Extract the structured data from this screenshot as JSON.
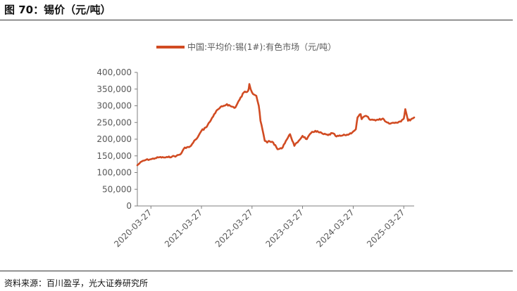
{
  "figure": {
    "title": "图 70：锡价（元/吨）",
    "source": "资料来源：百川盈孚，光大证券研究所"
  },
  "colors": {
    "series": "#D14B22",
    "axis": "#7F7F7F",
    "text": "#595959"
  },
  "chart_data": {
    "type": "line",
    "title": "",
    "xlabel": "",
    "ylabel": "",
    "legend": {
      "position": "top",
      "entries": [
        "中国:平均价:锡(1#):有色市场（元/吨）"
      ]
    },
    "grid": false,
    "ylim": [
      0,
      400000
    ],
    "yticks": [
      0,
      50000,
      100000,
      150000,
      200000,
      250000,
      300000,
      350000,
      400000
    ],
    "ytick_labels": [
      "0",
      "50,000",
      "100,000",
      "150,000",
      "200,000",
      "250,000",
      "300,000",
      "350,000",
      "400,000"
    ],
    "xlim": [
      "2019-12-20",
      "2025-06-10"
    ],
    "xticks": [
      "2020-03-27",
      "2021-03-27",
      "2022-03-27",
      "2023-03-27",
      "2024-03-27",
      "2025-03-27"
    ],
    "series": [
      {
        "name": "中国:平均价:锡(1#):有色市场（元/吨）",
        "x": [
          "2019-12-20",
          "2020-01-20",
          "2020-02-20",
          "2020-03-27",
          "2020-04-27",
          "2020-05-27",
          "2020-06-27",
          "2020-07-27",
          "2020-08-27",
          "2020-09-27",
          "2020-10-27",
          "2020-11-27",
          "2020-12-27",
          "2021-01-10",
          "2021-01-27",
          "2021-02-10",
          "2021-02-27",
          "2021-03-27",
          "2021-04-27",
          "2021-05-27",
          "2021-06-27",
          "2021-07-27",
          "2021-08-27",
          "2021-09-27",
          "2021-10-27",
          "2021-11-27",
          "2021-12-27",
          "2022-01-27",
          "2022-02-27",
          "2022-03-08",
          "2022-03-27",
          "2022-04-27",
          "2022-05-15",
          "2022-05-27",
          "2022-06-10",
          "2022-06-27",
          "2022-07-15",
          "2022-07-27",
          "2022-08-27",
          "2022-09-27",
          "2022-10-27",
          "2022-11-27",
          "2022-12-27",
          "2023-01-27",
          "2023-02-27",
          "2023-03-27",
          "2023-04-27",
          "2023-05-27",
          "2023-06-27",
          "2023-07-27",
          "2023-08-27",
          "2023-09-27",
          "2023-10-27",
          "2023-11-27",
          "2023-12-27",
          "2024-01-27",
          "2024-02-27",
          "2024-03-27",
          "2024-04-15",
          "2024-04-27",
          "2024-05-20",
          "2024-05-27",
          "2024-06-27",
          "2024-07-27",
          "2024-08-27",
          "2024-09-27",
          "2024-10-27",
          "2024-11-27",
          "2024-12-27",
          "2025-01-27",
          "2025-02-27",
          "2025-03-15",
          "2025-03-27",
          "2025-04-07",
          "2025-04-27",
          "2025-05-27",
          "2025-06-10"
        ],
        "values": [
          122000,
          133000,
          138000,
          140000,
          143000,
          146000,
          145000,
          146000,
          148000,
          150000,
          155000,
          175000,
          176000,
          180000,
          190000,
          198000,
          205000,
          225000,
          235000,
          252000,
          275000,
          290000,
          298000,
          305000,
          298000,
          295000,
          318000,
          340000,
          345000,
          365000,
          340000,
          330000,
          300000,
          255000,
          230000,
          195000,
          190000,
          195000,
          190000,
          170000,
          172000,
          195000,
          215000,
          180000,
          195000,
          210000,
          200000,
          218000,
          225000,
          220000,
          215000,
          212000,
          218000,
          208000,
          210000,
          212000,
          215000,
          223000,
          230000,
          265000,
          275000,
          260000,
          270000,
          258000,
          258000,
          258000,
          262000,
          250000,
          248000,
          250000,
          253000,
          258000,
          262000,
          290000,
          255000,
          262000,
          265000
        ]
      }
    ]
  }
}
